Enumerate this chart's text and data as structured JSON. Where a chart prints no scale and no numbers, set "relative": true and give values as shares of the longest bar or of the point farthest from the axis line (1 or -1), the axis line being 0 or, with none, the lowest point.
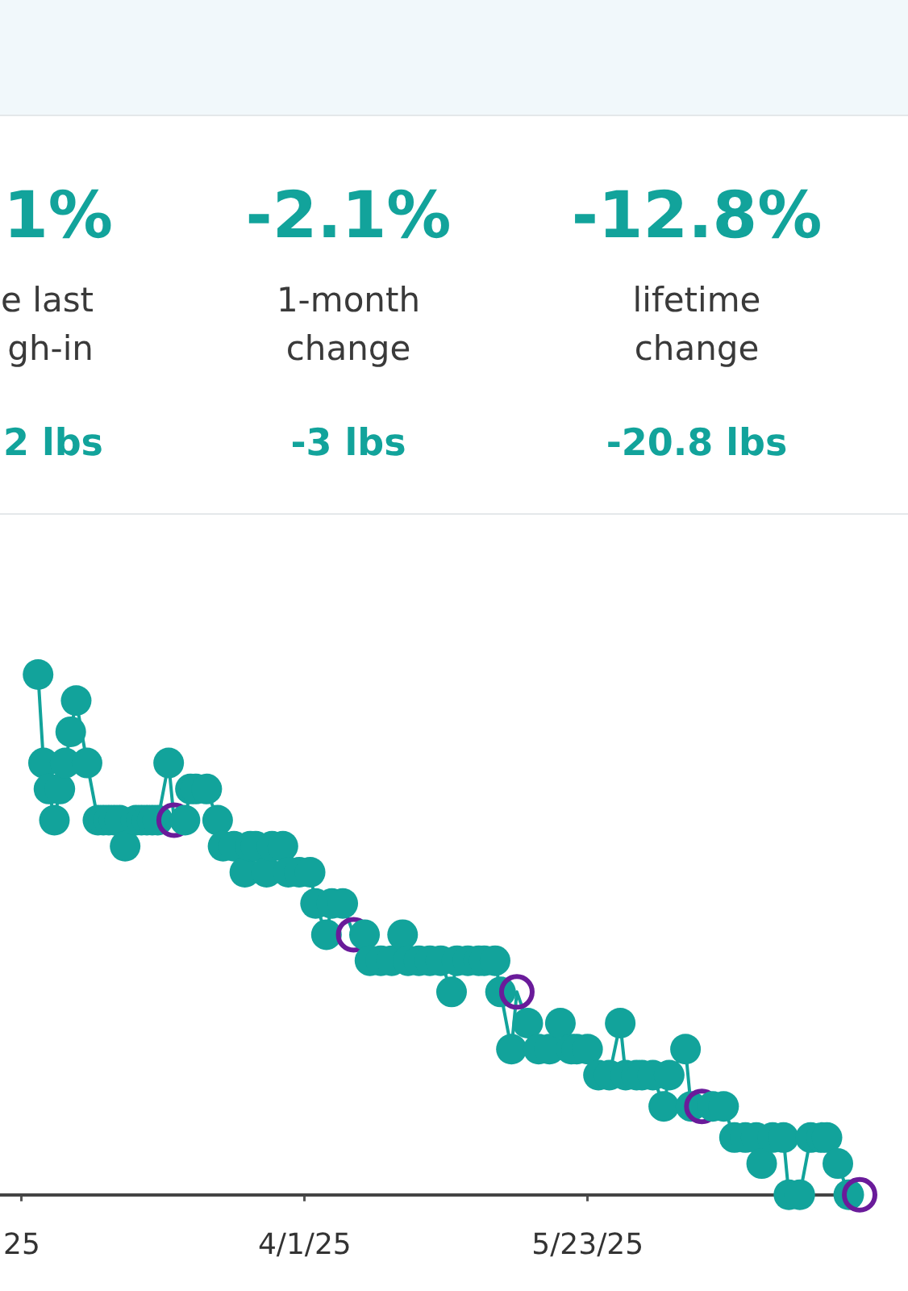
{
  "chart_data": [
    {
      "type": "other",
      "annotations": [
        "1%",
        "e last gh-in",
        "2 lbs",
        "-2.1%",
        "1-month change",
        "-3 lbs",
        "-12.8%",
        "lifetime change",
        "-20.8 lbs"
      ]
    },
    {
      "type": "line",
      "relative": true,
      "grid": false,
      "legend": false,
      "marker": "circle",
      "line_style": "solid",
      "xlim": [
        "2025-02-04",
        "2025-07-12"
      ],
      "xticks": [
        {
          "value": "2025-02-08",
          "label": "25"
        },
        {
          "value": "2025-04-01",
          "label": "4/1/25"
        },
        {
          "value": "2025-05-23",
          "label": "5/23/25"
        }
      ],
      "series": [
        {
          "color": "#12a39b",
          "colors": [
            "#12a39b",
            "#12a39b",
            "#12a39b",
            "#12a39b",
            "#12a39b",
            "#12a39b",
            "#12a39b",
            "#12a39b",
            "#12a39b",
            "#12a39b",
            "#12a39b",
            "#12a39b",
            "#12a39b",
            "#12a39b",
            "#12a39b",
            "#12a39b",
            "#12a39b",
            "#12a39b",
            "#12a39b",
            "#12a39b",
            "#12a39b",
            "#6a1b9a",
            "#12a39b",
            "#12a39b",
            "#12a39b",
            "#12a39b",
            "#12a39b",
            "#12a39b",
            "#12a39b",
            "#12a39b",
            "#12a39b",
            "#12a39b",
            "#12a39b",
            "#12a39b",
            "#12a39b",
            "#12a39b",
            "#12a39b",
            "#12a39b",
            "#12a39b",
            "#12a39b",
            "#12a39b",
            "#12a39b",
            "#6a1b9a",
            "#12a39b",
            "#12a39b",
            "#12a39b",
            "#12a39b",
            "#12a39b",
            "#12a39b",
            "#12a39b",
            "#12a39b",
            "#12a39b",
            "#12a39b",
            "#12a39b",
            "#12a39b",
            "#12a39b",
            "#12a39b",
            "#12a39b",
            "#12a39b",
            "#12a39b",
            "#6a1b9a",
            "#12a39b",
            "#12a39b",
            "#12a39b",
            "#12a39b",
            "#12a39b",
            "#12a39b",
            "#12a39b",
            "#12a39b",
            "#12a39b",
            "#12a39b",
            "#12a39b",
            "#12a39b",
            "#12a39b",
            "#12a39b",
            "#12a39b",
            "#12a39b",
            "#12a39b",
            "#12a39b",
            "#6a1b9a",
            "#12a39b",
            "#12a39b",
            "#12a39b",
            "#12a39b",
            "#12a39b",
            "#12a39b",
            "#12a39b",
            "#12a39b",
            "#12a39b",
            "#12a39b",
            "#12a39b",
            "#12a39b",
            "#12a39b",
            "#12a39b",
            "#12a39b",
            "#6a1b9a"
          ],
          "x": [
            "2025-02-11",
            "2025-02-12",
            "2025-02-13",
            "2025-02-14",
            "2025-02-15",
            "2025-02-16",
            "2025-02-17",
            "2025-02-18",
            "2025-02-20",
            "2025-02-22",
            "2025-02-23",
            "2025-02-24",
            "2025-02-25",
            "2025-02-26",
            "2025-02-27",
            "2025-03-01",
            "2025-03-02",
            "2025-03-03",
            "2025-03-04",
            "2025-03-05",
            "2025-03-07",
            "2025-03-08",
            "2025-03-10",
            "2025-03-11",
            "2025-03-12",
            "2025-03-14",
            "2025-03-16",
            "2025-03-17",
            "2025-03-19",
            "2025-03-21",
            "2025-03-22",
            "2025-03-23",
            "2025-03-25",
            "2025-03-26",
            "2025-03-28",
            "2025-03-29",
            "2025-03-31",
            "2025-04-02",
            "2025-04-03",
            "2025-04-05",
            "2025-04-06",
            "2025-04-08",
            "2025-04-10",
            "2025-04-12",
            "2025-04-13",
            "2025-04-15",
            "2025-04-17",
            "2025-04-19",
            "2025-04-20",
            "2025-04-22",
            "2025-04-24",
            "2025-04-26",
            "2025-04-28",
            "2025-04-29",
            "2025-05-01",
            "2025-05-03",
            "2025-05-04",
            "2025-05-06",
            "2025-05-07",
            "2025-05-09",
            "2025-05-10",
            "2025-05-12",
            "2025-05-14",
            "2025-05-16",
            "2025-05-18",
            "2025-05-20",
            "2025-05-21",
            "2025-05-23",
            "2025-05-25",
            "2025-05-27",
            "2025-05-29",
            "2025-05-30",
            "2025-06-01",
            "2025-06-02",
            "2025-06-04",
            "2025-06-06",
            "2025-06-07",
            "2025-06-10",
            "2025-06-11",
            "2025-06-13",
            "2025-06-15",
            "2025-06-17",
            "2025-06-19",
            "2025-06-21",
            "2025-06-23",
            "2025-06-24",
            "2025-06-26",
            "2025-06-28",
            "2025-06-29",
            "2025-07-01",
            "2025-07-03",
            "2025-07-05",
            "2025-07-06",
            "2025-07-08",
            "2025-07-10",
            "2025-07-12"
          ],
          "values": [
            1,
            0.83,
            0.78,
            0.72,
            0.78,
            0.83,
            0.89,
            0.95,
            0.83,
            0.72,
            0.72,
            0.72,
            0.72,
            0.72,
            0.67,
            0.72,
            0.72,
            0.72,
            0.72,
            0.72,
            0.83,
            0.72,
            0.72,
            0.78,
            0.78,
            0.78,
            0.72,
            0.67,
            0.67,
            0.62,
            0.67,
            0.67,
            0.62,
            0.67,
            0.67,
            0.62,
            0.62,
            0.62,
            0.56,
            0.5,
            0.56,
            0.56,
            0.5,
            0.5,
            0.45,
            0.45,
            0.45,
            0.5,
            0.45,
            0.45,
            0.45,
            0.45,
            0.39,
            0.45,
            0.45,
            0.45,
            0.45,
            0.45,
            0.39,
            0.28,
            0.39,
            0.33,
            0.28,
            0.28,
            0.33,
            0.28,
            0.28,
            0.28,
            0.23,
            0.23,
            0.33,
            0.23,
            0.23,
            0.23,
            0.23,
            0.17,
            0.23,
            0.28,
            0.17,
            0.17,
            0.17,
            0.17,
            0.11,
            0.11,
            0.11,
            0.06,
            0.11,
            0.11,
            0,
            0,
            0.11,
            0.11,
            0.11,
            0.06,
            0,
            0
          ]
        }
      ]
    }
  ]
}
